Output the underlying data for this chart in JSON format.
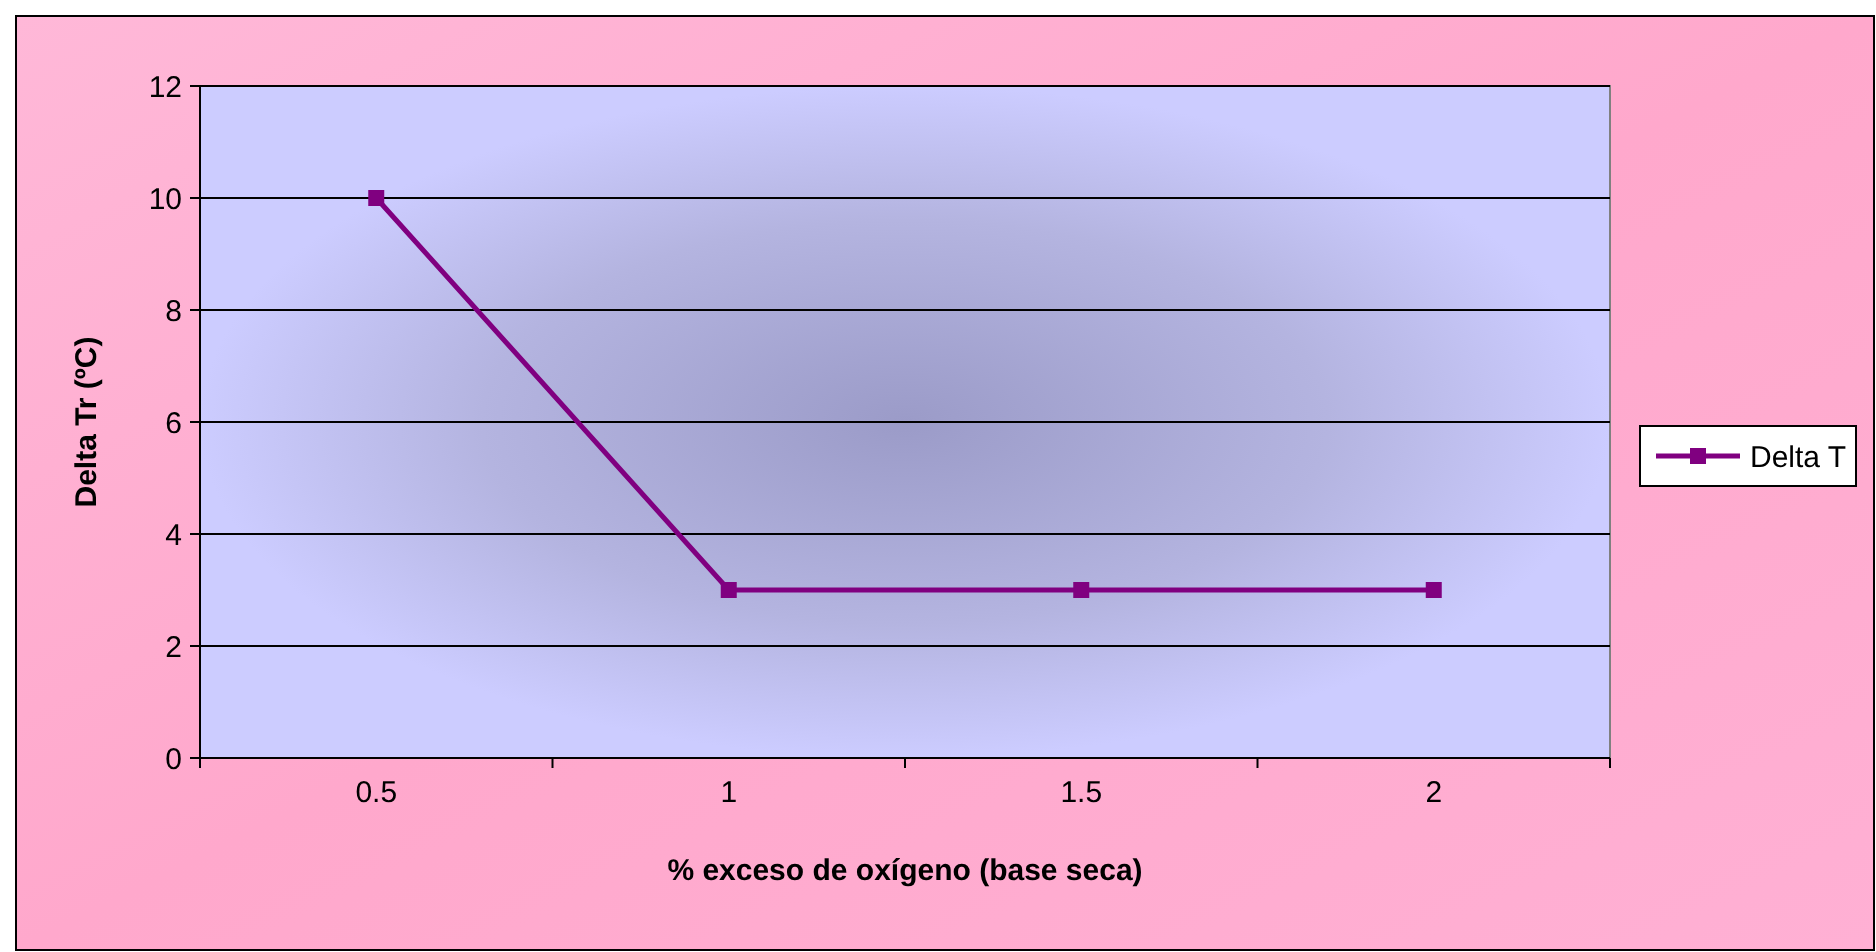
{
  "chart_data": {
    "type": "line",
    "xlabel": "% exceso de oxígeno (base seca)",
    "ylabel": "Delta Tr (ºC)",
    "categories": [
      "0.5",
      "1",
      "1.5",
      "2"
    ],
    "series": [
      {
        "name": "Delta T",
        "color": "#800080",
        "values": [
          10,
          3,
          3,
          3
        ]
      }
    ],
    "ylim": [
      0,
      12
    ],
    "yticks": [
      0,
      2,
      4,
      6,
      8,
      10,
      12
    ],
    "grid": "y",
    "legend": "right",
    "marker": "square",
    "line_style": "solid"
  }
}
